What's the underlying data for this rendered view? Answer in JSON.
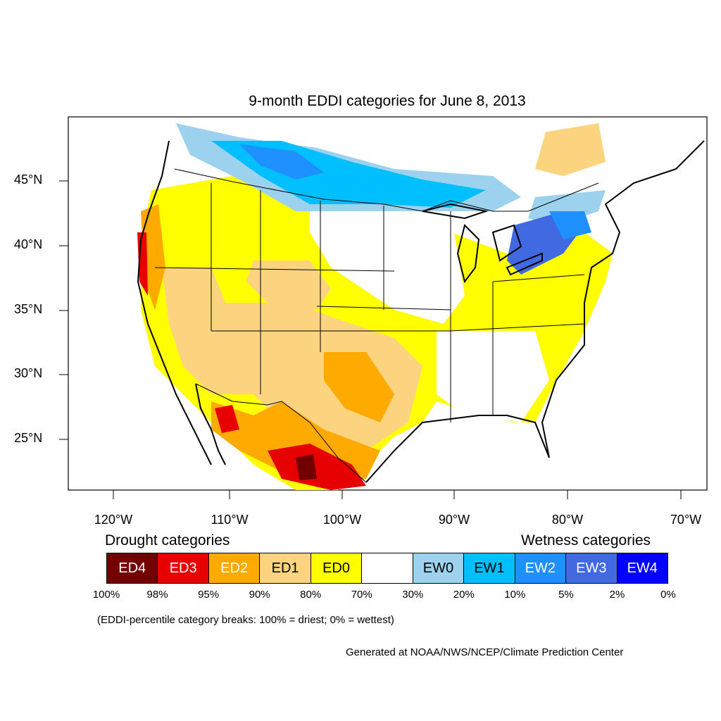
{
  "title": "9-month EDDI categories for June 8, 2013",
  "axes": {
    "lat_labels": [
      "45°N",
      "40°N",
      "35°N",
      "30°N",
      "25°N"
    ],
    "lon_labels": [
      "120°W",
      "110°W",
      "100°W",
      "90°W",
      "80°W",
      "70°W"
    ]
  },
  "legend": {
    "drought_heading": "Drought categories",
    "wetness_heading": "Wetness categories",
    "categories": [
      {
        "label": "ED4",
        "color": "#730000",
        "text_color": "#ffffff"
      },
      {
        "label": "ED3",
        "color": "#e60000",
        "text_color": "#ffffff"
      },
      {
        "label": "ED2",
        "color": "#ffaa00",
        "text_color": "#ffffff"
      },
      {
        "label": "ED1",
        "color": "#fcd37f",
        "text_color": "#000000"
      },
      {
        "label": "ED0",
        "color": "#ffff00",
        "text_color": "#000000"
      },
      {
        "label": "",
        "color": "#ffffff",
        "text_color": "#000000"
      },
      {
        "label": "EW0",
        "color": "#9dd2ee",
        "text_color": "#000000"
      },
      {
        "label": "EW1",
        "color": "#00bfff",
        "text_color": "#000000"
      },
      {
        "label": "EW2",
        "color": "#1e90ff",
        "text_color": "#ffffff"
      },
      {
        "label": "EW3",
        "color": "#4169e1",
        "text_color": "#ffffff"
      },
      {
        "label": "EW4",
        "color": "#0000ff",
        "text_color": "#ffffff"
      }
    ],
    "percent_breaks": [
      "100%",
      "98%",
      "95%",
      "90%",
      "80%",
      "70%",
      "30%",
      "20%",
      "10%",
      "5%",
      "2%",
      "0%"
    ]
  },
  "note": "(EDDI-percentile category breaks: 100% = driest; 0% = wettest)",
  "credit": "Generated at NOAA/NWS/NCEP/Climate Prediction Center"
}
